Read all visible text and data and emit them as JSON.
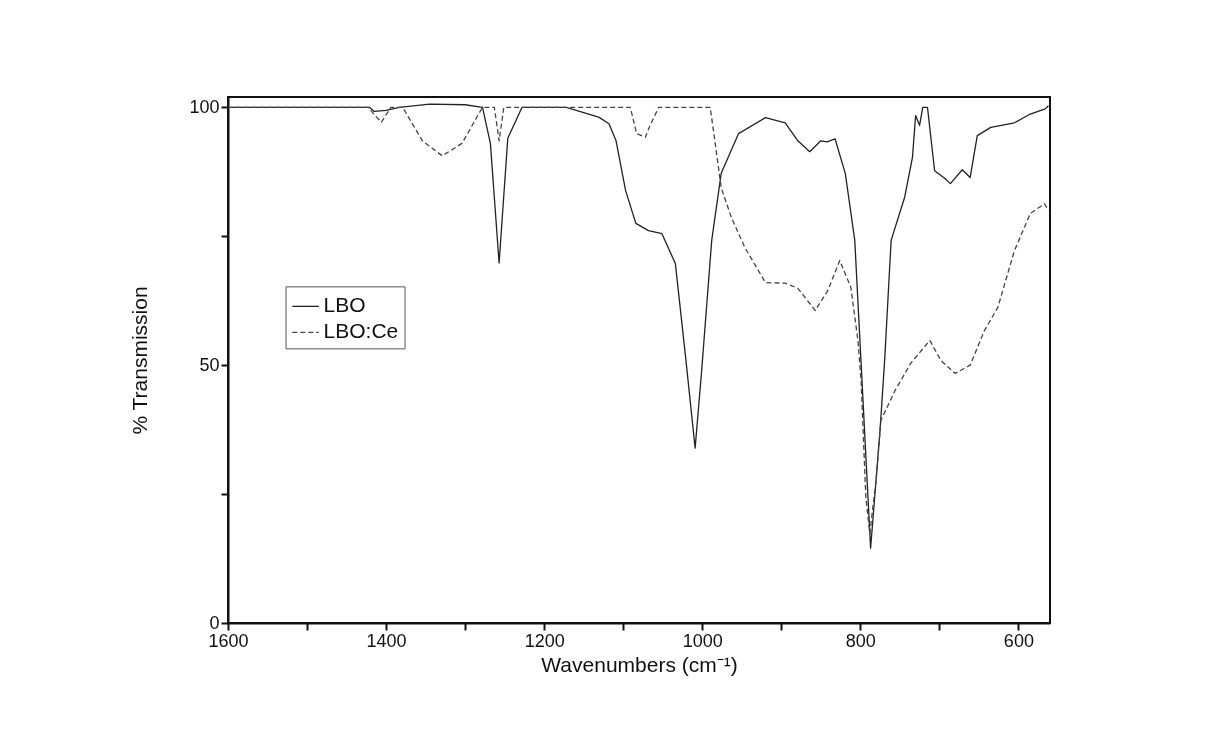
{
  "chart_data": {
    "type": "line",
    "xlabel": "Wavenumbers (cm⁻¹)",
    "ylabel": "% Transmission",
    "xlim": [
      1600,
      560
    ],
    "ylim": [
      0,
      102
    ],
    "xticks": [
      1600,
      {
        "value": 1500,
        "label": null
      },
      1400,
      {
        "value": 1300,
        "label": null
      },
      1200,
      {
        "value": 1100,
        "label": null
      },
      1000,
      {
        "value": 900,
        "label": null
      },
      800,
      {
        "value": 700,
        "label": null
      },
      600
    ],
    "yticks": [
      0,
      {
        "value": 25,
        "label": null
      },
      50,
      {
        "value": 75,
        "label": null
      },
      100
    ],
    "legend": "left",
    "series": [
      {
        "name": "LBO",
        "color": "#222222",
        "line_style": "solid",
        "x": [
          1600,
          1421,
          1415,
          1400,
          1383,
          1345,
          1300,
          1278,
          1268,
          1257,
          1246,
          1228,
          1172,
          1131,
          1118,
          1109,
          1097,
          1084,
          1068,
          1051,
          1034,
          1021,
          1009,
          1001,
          988,
          976,
          954,
          920,
          895,
          879,
          864,
          850,
          842,
          832,
          819,
          807,
          799,
          787,
          775,
          769,
          761,
          744,
          734,
          730,
          725,
          721,
          715,
          706,
          693,
          686,
          671,
          661,
          652,
          635,
          605,
          585,
          566,
          562
        ],
        "values": [
          100,
          100,
          99.2,
          99.4,
          100,
          100.6,
          100.5,
          100,
          93,
          69.8,
          94,
          100,
          100,
          98.1,
          96.8,
          93.5,
          83.9,
          77.5,
          76.1,
          75.5,
          69.7,
          51.5,
          33.9,
          48.4,
          74.2,
          87.2,
          94.9,
          98,
          97,
          93.5,
          91.4,
          93.5,
          93.3,
          93.9,
          87.2,
          74.2,
          50.4,
          14.5,
          37.4,
          51.5,
          74.2,
          82.5,
          90.3,
          98.4,
          96.5,
          100,
          100,
          87.7,
          86.2,
          85.2,
          87.9,
          86.4,
          94.5,
          96.1,
          97,
          98.7,
          99.7,
          100.3
        ]
      },
      {
        "name": "LBO:Ce",
        "color": "#444444",
        "line_style": "dashed",
        "x": [
          1600,
          1423,
          1406,
          1394,
          1379,
          1354,
          1329,
          1304,
          1278,
          1263,
          1257,
          1251,
          1091,
          1083,
          1072,
          1066,
          1055,
          990,
          984,
          976,
          963,
          946,
          920,
          895,
          879,
          857,
          841,
          826,
          812,
          803,
          799,
          793,
          788,
          780,
          774,
          756,
          736,
          712,
          698,
          680,
          661,
          643,
          626,
          605,
          585,
          567,
          562
        ],
        "values": [
          100,
          100,
          97.1,
          100,
          100,
          93.5,
          90.6,
          93,
          100,
          100,
          93.5,
          100,
          100,
          94.9,
          94.2,
          96.5,
          100,
          100,
          93.5,
          84.4,
          78.6,
          72.8,
          66,
          65.9,
          64.9,
          60.6,
          64.5,
          70.3,
          65.1,
          54.8,
          47,
          24.4,
          17.4,
          27.7,
          39.3,
          45.1,
          50.4,
          54.8,
          50.9,
          48.4,
          50,
          56.7,
          61.2,
          72.2,
          79.4,
          81.3,
          80
        ]
      }
    ]
  }
}
